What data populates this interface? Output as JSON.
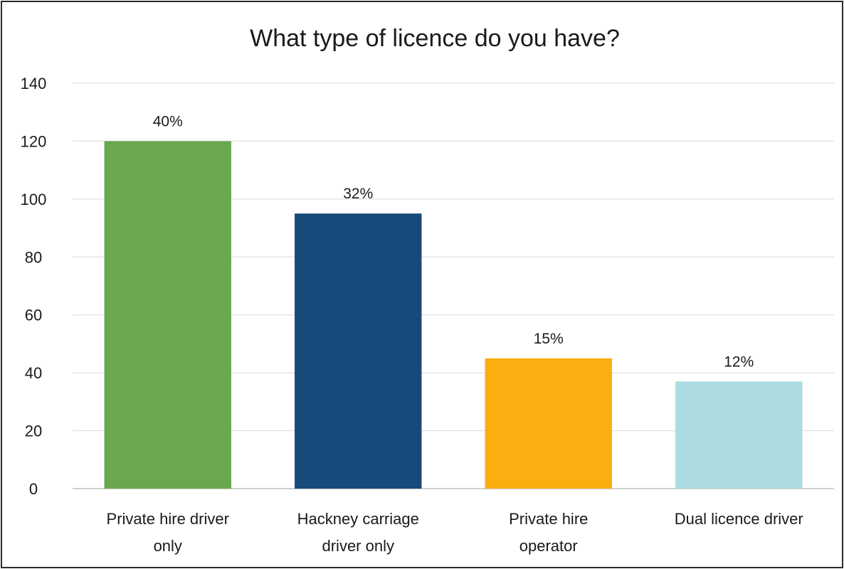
{
  "chart_data": {
    "type": "bar",
    "title": "What type of licence do you have?",
    "xlabel": "",
    "ylabel": "",
    "ylim": [
      0,
      140
    ],
    "yticks": [
      0,
      20,
      40,
      60,
      80,
      100,
      120,
      140
    ],
    "grid": true,
    "legend": "none",
    "categories": [
      [
        "Private hire driver",
        "only"
      ],
      [
        "Hackney carriage",
        "driver only"
      ],
      [
        "Private hire",
        "operator"
      ],
      [
        "Dual licence driver"
      ]
    ],
    "values": [
      120,
      95,
      45,
      37
    ],
    "data_labels": [
      "40%",
      "32%",
      "15%",
      "12%"
    ],
    "colors": [
      "#6aa84f",
      "#17497a",
      "#fbae0f",
      "#acdce2"
    ]
  }
}
